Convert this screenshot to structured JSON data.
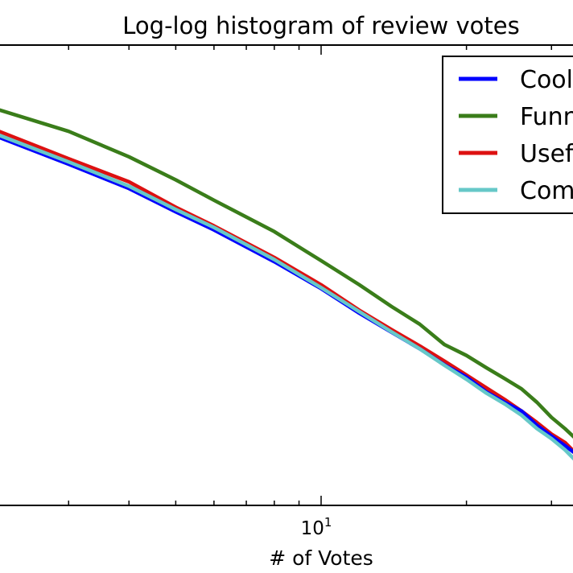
{
  "chart_data": {
    "type": "line",
    "title": "Log-log histogram of review votes",
    "xlabel": "# of Votes",
    "ylabel": "",
    "xscale": "log",
    "yscale": "log",
    "xlim": [
      1.5,
      49
    ],
    "ylim": [
      1,
      1000000
    ],
    "grid": false,
    "legend_position": "top-right",
    "x_ticks": [
      {
        "base": "10",
        "exp": "1",
        "value": 10
      }
    ],
    "series": [
      {
        "name": "Cool",
        "color": "#0000ff",
        "x": [
          1.5,
          2,
          3,
          4,
          5,
          6,
          8,
          10,
          12,
          14,
          16,
          18,
          20,
          22,
          24,
          26,
          28,
          30,
          32,
          34,
          36,
          38,
          40,
          42,
          44,
          46,
          48,
          49
        ],
        "y": [
          130000,
          75000,
          28000,
          13500,
          6700,
          3900,
          1500,
          670,
          320,
          180,
          110,
          68,
          47,
          30,
          22,
          17,
          11,
          8,
          6,
          4.5,
          3.2,
          2.3,
          1.7,
          1.6,
          1.3,
          1.15,
          1.05,
          1.1
        ]
      },
      {
        "name": "Funny",
        "color": "#3a7d1a",
        "x": [
          1.5,
          2,
          3,
          4,
          5,
          6,
          8,
          10,
          12,
          14,
          16,
          18,
          20,
          22,
          24,
          26,
          28,
          30,
          32,
          34,
          36,
          38,
          40,
          42,
          44,
          46,
          48,
          49
        ],
        "y": [
          260000,
          165000,
          75000,
          35000,
          17500,
          9500,
          3700,
          1550,
          750,
          390,
          230,
          125,
          90,
          62,
          45,
          33,
          22,
          14,
          10,
          7,
          5.2,
          3.7,
          2.8,
          2.2,
          2.6,
          1.7,
          1.5,
          1.4
        ]
      },
      {
        "name": "Useful",
        "color": "#dd1111",
        "x": [
          1.5,
          2,
          3,
          4,
          5,
          6,
          8,
          10,
          12,
          14,
          16,
          18,
          20,
          22,
          24,
          26,
          28,
          30,
          32,
          34,
          36,
          38,
          40,
          42,
          44,
          46,
          48,
          49
        ],
        "y": [
          145000,
          90000,
          33000,
          16500,
          7700,
          4400,
          1700,
          750,
          350,
          195,
          120,
          76,
          50,
          34,
          24,
          17,
          12,
          8.5,
          6.6,
          4.5,
          3.6,
          3,
          2,
          1.7,
          1.45,
          1.4,
          1.2,
          1.1
        ]
      },
      {
        "name": "Comb",
        "color": "#66c8c8",
        "x": [
          1.5,
          2,
          3,
          4,
          5,
          6,
          8,
          10,
          12,
          14,
          16,
          18,
          20,
          22,
          24,
          26,
          28,
          30,
          32,
          34,
          36,
          38,
          40,
          42,
          44,
          46,
          48,
          49
        ],
        "y": [
          140000,
          80000,
          30000,
          14500,
          7200,
          4200,
          1600,
          690,
          335,
          182,
          110,
          67,
          44,
          29,
          21,
          15,
          10,
          7.4,
          5.3,
          3.6,
          2.7,
          2.1,
          1.75,
          1.8,
          1.6,
          1.2,
          1.05,
          1.15
        ]
      }
    ]
  }
}
